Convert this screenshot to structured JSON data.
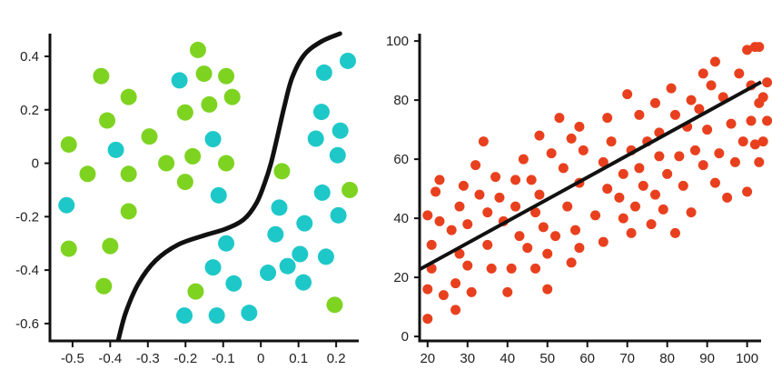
{
  "chart_data": [
    {
      "type": "scatter",
      "title": "",
      "xlabel": "",
      "ylabel": "",
      "xlim": [
        -0.56,
        0.26
      ],
      "ylim": [
        -0.665,
        0.485
      ],
      "grid": false,
      "x_ticks": [
        -0.5,
        -0.4,
        -0.3,
        -0.2,
        -0.1,
        0,
        0.1,
        0.2
      ],
      "x_tick_labels": [
        "-0.5",
        "-0.4",
        "-0.3",
        "-0.2",
        "-0.1",
        "0",
        "0.1",
        "0.2"
      ],
      "y_ticks": [
        0.4,
        0.2,
        0,
        -0.2,
        -0.4,
        -0.6
      ],
      "y_tick_labels": [
        "0.4",
        "0.2",
        "0",
        "-0.2",
        "-0.4",
        "-0.6"
      ],
      "series": [
        {
          "color": "#7ed321",
          "points": [
            [
              -0.167,
              0.424
            ],
            [
              -0.424,
              0.326
            ],
            [
              -0.151,
              0.335
            ],
            [
              -0.092,
              0.326
            ],
            [
              -0.351,
              0.248
            ],
            [
              -0.076,
              0.248
            ],
            [
              -0.137,
              0.22
            ],
            [
              -0.201,
              0.19
            ],
            [
              -0.408,
              0.16
            ],
            [
              -0.296,
              0.1
            ],
            [
              -0.51,
              0.07
            ],
            [
              -0.181,
              0.026
            ],
            [
              -0.251,
              0.0
            ],
            [
              -0.092,
              0.0
            ],
            [
              -0.46,
              -0.04
            ],
            [
              -0.351,
              -0.04
            ],
            [
              -0.201,
              -0.07
            ],
            [
              0.056,
              -0.03
            ],
            [
              0.236,
              -0.1
            ],
            [
              -0.351,
              -0.18
            ],
            [
              -0.51,
              -0.32
            ],
            [
              -0.4,
              -0.31
            ],
            [
              -0.417,
              -0.46
            ],
            [
              -0.173,
              -0.48
            ],
            [
              0.196,
              -0.53
            ]
          ]
        },
        {
          "color": "#1ec8c8",
          "points": [
            [
              -0.216,
              0.31
            ],
            [
              0.168,
              0.339
            ],
            [
              0.231,
              0.383
            ],
            [
              -0.385,
              0.05
            ],
            [
              -0.127,
              0.09
            ],
            [
              0.161,
              0.192
            ],
            [
              0.146,
              0.092
            ],
            [
              0.211,
              0.122
            ],
            [
              0.204,
              0.03
            ],
            [
              -0.112,
              -0.12
            ],
            [
              0.163,
              -0.11
            ],
            [
              0.049,
              -0.166
            ],
            [
              0.116,
              -0.225
            ],
            [
              0.206,
              -0.195
            ],
            [
              -0.516,
              -0.157
            ],
            [
              0.039,
              -0.266
            ],
            [
              -0.092,
              -0.3
            ],
            [
              0.104,
              -0.34
            ],
            [
              0.173,
              -0.35
            ],
            [
              -0.127,
              -0.39
            ],
            [
              0.019,
              -0.41
            ],
            [
              0.071,
              -0.385
            ],
            [
              -0.072,
              -0.45
            ],
            [
              0.113,
              -0.446
            ],
            [
              -0.203,
              -0.57
            ],
            [
              -0.117,
              -0.57
            ],
            [
              -0.031,
              -0.56
            ]
          ]
        }
      ],
      "boundary": [
        [
          -0.379,
          -0.665
        ],
        [
          -0.359,
          -0.56
        ],
        [
          -0.325,
          -0.45
        ],
        [
          -0.28,
          -0.365
        ],
        [
          -0.22,
          -0.305
        ],
        [
          -0.15,
          -0.27
        ],
        [
          -0.092,
          -0.245
        ],
        [
          -0.045,
          -0.21
        ],
        [
          -0.012,
          -0.15
        ],
        [
          0.01,
          -0.075
        ],
        [
          0.027,
          0.0
        ],
        [
          0.044,
          0.1
        ],
        [
          0.062,
          0.21
        ],
        [
          0.083,
          0.32
        ],
        [
          0.115,
          0.405
        ],
        [
          0.16,
          0.455
        ],
        [
          0.21,
          0.485
        ]
      ]
    },
    {
      "type": "scatter",
      "title": "",
      "xlabel": "",
      "ylabel": "",
      "xlim": [
        18,
        103.5
      ],
      "ylim": [
        -1.5,
        102.5
      ],
      "grid": false,
      "x_ticks": [
        20,
        30,
        40,
        50,
        60,
        70,
        80,
        90,
        100
      ],
      "x_tick_labels": [
        "20",
        "30",
        "40",
        "50",
        "60",
        "70",
        "80",
        "90",
        "100"
      ],
      "y_ticks": [
        0,
        20,
        40,
        60,
        80,
        100
      ],
      "y_tick_labels": [
        "0",
        "20",
        "40",
        "60",
        "80",
        "100"
      ],
      "series": [
        {
          "color": "#e8401e",
          "points": [
            [
              20,
              6
            ],
            [
              20,
              16
            ],
            [
              21,
              23
            ],
            [
              21,
              31
            ],
            [
              20,
              41
            ],
            [
              22,
              49
            ],
            [
              23,
              53
            ],
            [
              23,
              39
            ],
            [
              24,
              14
            ],
            [
              26,
              36
            ],
            [
              27,
              9
            ],
            [
              27,
              18
            ],
            [
              28,
              28
            ],
            [
              28,
              44
            ],
            [
              29,
              51
            ],
            [
              30,
              24
            ],
            [
              30,
              38
            ],
            [
              31,
              15
            ],
            [
              32,
              58
            ],
            [
              33,
              48
            ],
            [
              34,
              66
            ],
            [
              35,
              42
            ],
            [
              35,
              31
            ],
            [
              36,
              23
            ],
            [
              37,
              54
            ],
            [
              38,
              47
            ],
            [
              39,
              39
            ],
            [
              40,
              15
            ],
            [
              41,
              23
            ],
            [
              42,
              53
            ],
            [
              42,
              44
            ],
            [
              43,
              34
            ],
            [
              44,
              60
            ],
            [
              45,
              30
            ],
            [
              46,
              53
            ],
            [
              47,
              42
            ],
            [
              47,
              23
            ],
            [
              48,
              68
            ],
            [
              48,
              48
            ],
            [
              49,
              37
            ],
            [
              50,
              16
            ],
            [
              50,
              28
            ],
            [
              51,
              62
            ],
            [
              52,
              34
            ],
            [
              53,
              74
            ],
            [
              54,
              57
            ],
            [
              55,
              44
            ],
            [
              56,
              67
            ],
            [
              56,
              25
            ],
            [
              57,
              36
            ],
            [
              58,
              71
            ],
            [
              58,
              30
            ],
            [
              58,
              52
            ],
            [
              59,
              63
            ],
            [
              62,
              41
            ],
            [
              64,
              32
            ],
            [
              64,
              59
            ],
            [
              65,
              50
            ],
            [
              65,
              74
            ],
            [
              66,
              66
            ],
            [
              68,
              47
            ],
            [
              69,
              40
            ],
            [
              69,
              55
            ],
            [
              70,
              82
            ],
            [
              71,
              63
            ],
            [
              71,
              35
            ],
            [
              72,
              44
            ],
            [
              73,
              57
            ],
            [
              73,
              75
            ],
            [
              74,
              51
            ],
            [
              75,
              66
            ],
            [
              76,
              38
            ],
            [
              77,
              79
            ],
            [
              77,
              48
            ],
            [
              78,
              61
            ],
            [
              78,
              69
            ],
            [
              79,
              43
            ],
            [
              80,
              55
            ],
            [
              81,
              84
            ],
            [
              82,
              75
            ],
            [
              82,
              35
            ],
            [
              83,
              61
            ],
            [
              84,
              51
            ],
            [
              85,
              71
            ],
            [
              86,
              42
            ],
            [
              86,
              80
            ],
            [
              87,
              63
            ],
            [
              88,
              77
            ],
            [
              89,
              89
            ],
            [
              89,
              58
            ],
            [
              90,
              70
            ],
            [
              91,
              85
            ],
            [
              92,
              93
            ],
            [
              92,
              52
            ],
            [
              93,
              62
            ],
            [
              94,
              81
            ],
            [
              95,
              47
            ],
            [
              96,
              72
            ],
            [
              97,
              59
            ],
            [
              98,
              89
            ],
            [
              99,
              66
            ],
            [
              100,
              97
            ],
            [
              100,
              49
            ],
            [
              101,
              73
            ],
            [
              101,
              85
            ],
            [
              102,
              98
            ],
            [
              102,
              65
            ],
            [
              103,
              59
            ],
            [
              103,
              79
            ],
            [
              103,
              98
            ],
            [
              104,
              81
            ],
            [
              104,
              66
            ],
            [
              105,
              86
            ],
            [
              105,
              73
            ]
          ]
        }
      ],
      "trend_line": [
        [
          18,
          22.7
        ],
        [
          103.5,
          86.1
        ]
      ]
    }
  ]
}
